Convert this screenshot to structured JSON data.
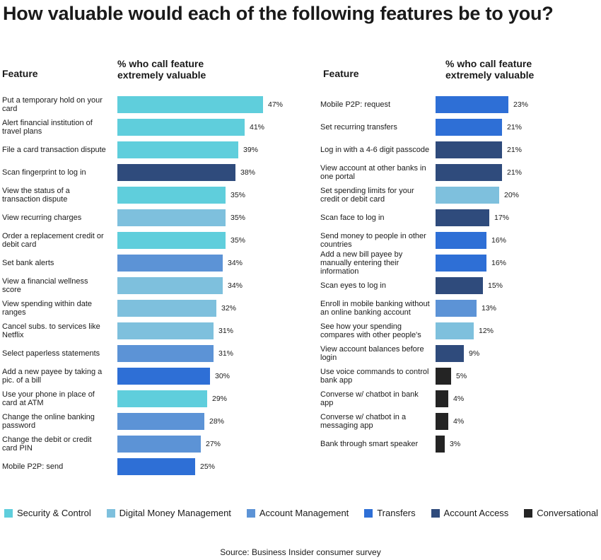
{
  "title": "How valuable would each of the following features be to you?",
  "headers": {
    "feature": "Feature",
    "value_line1": "% who call feature",
    "value_line2": "extremely valuable"
  },
  "categories": [
    {
      "key": "security",
      "name": "Security & Control",
      "color": "#5fcedc"
    },
    {
      "key": "digital",
      "name": "Digital Money Management",
      "color": "#7ec0dd"
    },
    {
      "key": "account",
      "name": "Account Management",
      "color": "#5c93d6"
    },
    {
      "key": "transfers",
      "name": "Transfers",
      "color": "#2e6fd6"
    },
    {
      "key": "access",
      "name": "Account Access",
      "color": "#2f4b7c"
    },
    {
      "key": "conversational",
      "name": "Conversational",
      "color": "#242424"
    }
  ],
  "source": "Source: Business Insider consumer survey",
  "chart_data": [
    {
      "type": "bar",
      "orientation": "horizontal",
      "xlim": [
        0,
        47
      ],
      "items": [
        {
          "label": "Put a temporary hold on your card",
          "value": 47,
          "value_label": "47%",
          "category": "security"
        },
        {
          "label": "Alert financial institution of travel plans",
          "value": 41,
          "value_label": "41%",
          "category": "security"
        },
        {
          "label": "File a card transaction dispute",
          "value": 39,
          "value_label": "39%",
          "category": "security"
        },
        {
          "label": "Scan fingerprint to log in",
          "value": 38,
          "value_label": "38%",
          "category": "access"
        },
        {
          "label": "View the status of a transaction dispute",
          "value": 35,
          "value_label": "35%",
          "category": "security"
        },
        {
          "label": "View recurring charges",
          "value": 35,
          "value_label": "35%",
          "category": "digital"
        },
        {
          "label": "Order a replacement  credit or debit card",
          "value": 35,
          "value_label": "35%",
          "category": "security"
        },
        {
          "label": "Set bank alerts",
          "value": 34,
          "value_label": "34%",
          "category": "account"
        },
        {
          "label": "View a financial wellness score",
          "value": 34,
          "value_label": "34%",
          "category": "digital"
        },
        {
          "label": "View spending within date ranges",
          "value": 32,
          "value_label": "32%",
          "category": "digital"
        },
        {
          "label": "Cancel subs. to services like Netflix",
          "value": 31,
          "value_label": "31%",
          "category": "digital"
        },
        {
          "label": "Select paperless statements",
          "value": 31,
          "value_label": "31%",
          "category": "account"
        },
        {
          "label": "Add a new payee by taking a pic. of a bill",
          "value": 30,
          "value_label": "30%",
          "category": "transfers"
        },
        {
          "label": "Use your phone in place of card at ATM",
          "value": 29,
          "value_label": "29%",
          "category": "security"
        },
        {
          "label": "Change the online banking password",
          "value": 28,
          "value_label": "28%",
          "category": "account"
        },
        {
          "label": "Change the debit or credit card PIN",
          "value": 27,
          "value_label": "27%",
          "category": "account"
        },
        {
          "label": "Mobile P2P: send",
          "value": 25,
          "value_label": "25%",
          "category": "transfers"
        }
      ]
    },
    {
      "type": "bar",
      "orientation": "horizontal",
      "xlim": [
        0,
        23
      ],
      "items": [
        {
          "label": "Mobile P2P: request",
          "value": 23,
          "value_label": "23%",
          "category": "transfers"
        },
        {
          "label": "Set recurring transfers",
          "value": 21,
          "value_label": "21%",
          "category": "transfers"
        },
        {
          "label": "Log in with a 4-6 digit passcode",
          "value": 21,
          "value_label": "21%",
          "category": "access"
        },
        {
          "label": "View account at other banks in one portal",
          "value": 21,
          "value_label": "21%",
          "category": "access"
        },
        {
          "label": "Set spending limits for your credit or debit card",
          "value": 20,
          "value_label": "20%",
          "category": "digital"
        },
        {
          "label": "Scan face to log in",
          "value": 17,
          "value_label": "17%",
          "category": "access"
        },
        {
          "label": "Send money to people in other countries",
          "value": 16,
          "value_label": "16%",
          "category": "transfers"
        },
        {
          "label": "Add a new bill payee by manually entering their information",
          "value": 16,
          "value_label": "16%",
          "category": "transfers"
        },
        {
          "label": "Scan eyes to log in",
          "value": 15,
          "value_label": "15%",
          "category": "access"
        },
        {
          "label": "Enroll in mobile banking without an online banking account",
          "value": 13,
          "value_label": "13%",
          "category": "account"
        },
        {
          "label": "See how your spending compares with other people's",
          "value": 12,
          "value_label": "12%",
          "category": "digital"
        },
        {
          "label": "View account balances before login",
          "value": 9,
          "value_label": "9%",
          "category": "access"
        },
        {
          "label": "Use voice commands to control bank app",
          "value": 5,
          "value_label": "5%",
          "category": "conversational"
        },
        {
          "label": "Converse w/ chatbot in bank app",
          "value": 4,
          "value_label": "4%",
          "category": "conversational"
        },
        {
          "label": "Converse w/ chatbot in a messaging app",
          "value": 4,
          "value_label": "4%",
          "category": "conversational"
        },
        {
          "label": "Bank through smart speaker",
          "value": 3,
          "value_label": "3%",
          "category": "conversational"
        }
      ]
    }
  ]
}
